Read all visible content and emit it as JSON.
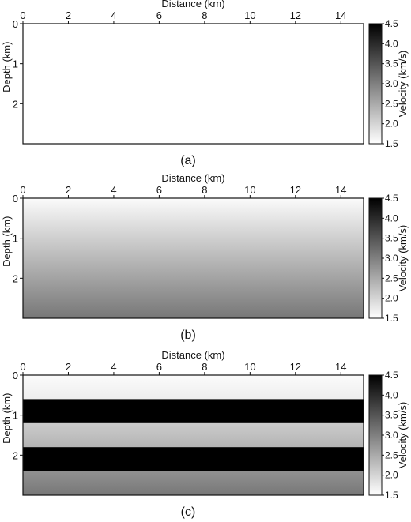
{
  "chart_data": [
    {
      "type": "heatmap",
      "caption": "(a)",
      "xlabel": "Distance (km)",
      "ylabel": "Depth (km)",
      "xlim": [
        0,
        15
      ],
      "ylim": [
        0,
        3
      ],
      "xticks": [
        0,
        2,
        4,
        6,
        8,
        10,
        12,
        14
      ],
      "yticks": [
        0,
        1,
        2
      ],
      "colorbar": {
        "label": "Velocity (km/s)",
        "range": [
          1.5,
          4.5
        ],
        "ticks": [
          "1.5",
          "2.0",
          "2.5",
          "3.0",
          "3.5",
          "4.0",
          "4.5"
        ],
        "colors": [
          "#ffffff",
          "#000000"
        ]
      },
      "model": {
        "kind": "constant",
        "velocity": 1.5
      }
    },
    {
      "type": "heatmap",
      "caption": "(b)",
      "xlabel": "Distance (km)",
      "ylabel": "Depth (km)",
      "xlim": [
        0,
        15
      ],
      "ylim": [
        0,
        3
      ],
      "xticks": [
        0,
        2,
        4,
        6,
        8,
        10,
        12,
        14
      ],
      "yticks": [
        0,
        1,
        2
      ],
      "colorbar": {
        "label": "Velocity (km/s)",
        "range": [
          1.5,
          4.5
        ],
        "ticks": [
          "1.5",
          "2.0",
          "2.5",
          "3.0",
          "3.5",
          "4.0",
          "4.5"
        ],
        "colors": [
          "#ffffff",
          "#000000"
        ]
      },
      "model": {
        "kind": "gradient",
        "velocity_top": 1.55,
        "velocity_bottom": 3.1
      }
    },
    {
      "type": "heatmap",
      "caption": "(c)",
      "xlabel": "Distance (km)",
      "ylabel": "Depth (km)",
      "xlim": [
        0,
        15
      ],
      "ylim": [
        0,
        3
      ],
      "xticks": [
        0,
        2,
        4,
        6,
        8,
        10,
        12,
        14
      ],
      "yticks": [
        0,
        1,
        2
      ],
      "colorbar": {
        "label": "Velocity (km/s)",
        "range": [
          1.5,
          4.5
        ],
        "ticks": [
          "1.5",
          "2.0",
          "2.5",
          "3.0",
          "3.5",
          "4.0",
          "4.5"
        ],
        "colors": [
          "#ffffff",
          "#000000"
        ]
      },
      "model": {
        "kind": "layers",
        "layers": [
          {
            "top": 0.0,
            "bottom": 0.6,
            "velocity_top": 1.55,
            "velocity_bottom": 1.7
          },
          {
            "top": 0.6,
            "bottom": 1.2,
            "velocity_top": 4.5,
            "velocity_bottom": 4.5
          },
          {
            "top": 1.2,
            "bottom": 1.8,
            "velocity_top": 2.1,
            "velocity_bottom": 2.4
          },
          {
            "top": 1.8,
            "bottom": 2.4,
            "velocity_top": 4.5,
            "velocity_bottom": 4.5
          },
          {
            "top": 2.4,
            "bottom": 3.0,
            "velocity_top": 2.8,
            "velocity_bottom": 3.1
          }
        ]
      }
    }
  ]
}
